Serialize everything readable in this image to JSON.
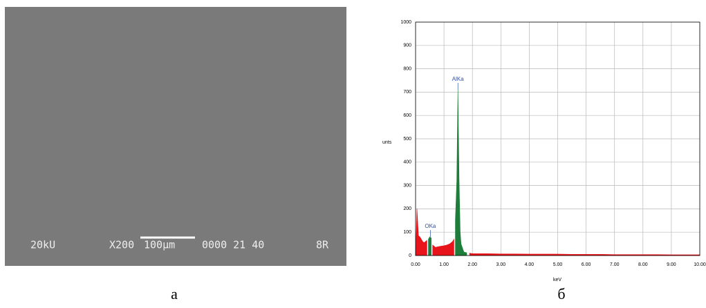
{
  "panels": {
    "left_label": "а",
    "right_label": "б"
  },
  "sem_image": {
    "voltage": "20kU",
    "magnification": "X200",
    "scale": "100µm",
    "id": "0000 21 40",
    "detector": "8R"
  },
  "chart_data": {
    "type": "area",
    "x_label": "keV",
    "y_label": "unts",
    "x": [
      0,
      0.05,
      0.1,
      0.15,
      0.2,
      0.25,
      0.3,
      0.35,
      0.4,
      0.45,
      0.5,
      0.55,
      0.6,
      0.65,
      0.7,
      0.8,
      0.9,
      1.0,
      1.1,
      1.2,
      1.3,
      1.35,
      1.4,
      1.45,
      1.49,
      1.53,
      1.57,
      1.6,
      1.7,
      1.8,
      1.9,
      2.0,
      2.5,
      3,
      3.5,
      4,
      4.5,
      5,
      5.5,
      6,
      6.5,
      7,
      7.5,
      8,
      8.5,
      9,
      9.5,
      10
    ],
    "series": [
      {
        "color": "#e8141b",
        "values": [
          0,
          200,
          85,
          80,
          70,
          60,
          55,
          60,
          65,
          null,
          null,
          null,
          45,
          40,
          35,
          38,
          40,
          42,
          45,
          50,
          60,
          70,
          null,
          null,
          null,
          null,
          null,
          null,
          null,
          null,
          10,
          8,
          8,
          7,
          7,
          6,
          6,
          6,
          5,
          5,
          5,
          4,
          4,
          4,
          4,
          3,
          3,
          3
        ]
      },
      {
        "color": "#1e7d3a",
        "values": [
          null,
          null,
          null,
          null,
          null,
          null,
          null,
          null,
          null,
          70,
          80,
          75,
          null,
          null,
          null,
          null,
          null,
          null,
          null,
          null,
          null,
          null,
          150,
          320,
          710,
          330,
          100,
          50,
          15,
          12,
          null,
          null,
          null,
          null,
          null,
          null,
          null,
          null,
          null,
          null,
          null,
          null,
          null,
          null,
          null,
          null,
          null,
          null
        ]
      }
    ],
    "annotations": [
      {
        "text": "AlKa",
        "x": 1.49,
        "y": 710
      },
      {
        "text": "OKa",
        "x": 0.52,
        "y": 80
      }
    ],
    "xlim": [
      0,
      10
    ],
    "ylim": [
      0,
      1000
    ],
    "xticks": [
      {
        "value": 0,
        "label": "0.00"
      },
      {
        "value": 1,
        "label": "1.00"
      },
      {
        "value": 2,
        "label": "2.00"
      },
      {
        "value": 3,
        "label": "3.00"
      },
      {
        "value": 4,
        "label": "4.00"
      },
      {
        "value": 5,
        "label": "5.00"
      },
      {
        "value": 6,
        "label": "6.00"
      },
      {
        "value": 7,
        "label": "7.00"
      },
      {
        "value": 8,
        "label": "8.00"
      },
      {
        "value": 9,
        "label": "9.00"
      },
      {
        "value": 10,
        "label": "10.00"
      }
    ],
    "yticks": [
      0,
      100,
      200,
      300,
      400,
      500,
      600,
      700,
      800,
      900,
      1000
    ],
    "grid": true
  }
}
